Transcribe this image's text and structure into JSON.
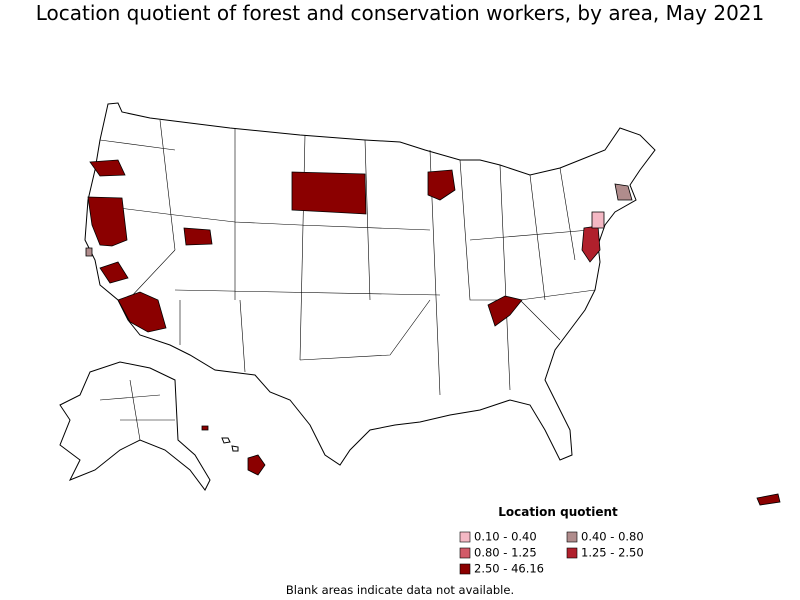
{
  "title": "Location quotient of forest and conservation workers, by area, May 2021",
  "legend": {
    "title": "Location quotient",
    "items": [
      {
        "label": "0.10 - 0.40",
        "color": "#f4b8c4"
      },
      {
        "label": "0.40 - 0.80",
        "color": "#b08c8c"
      },
      {
        "label": "0.80 - 1.25",
        "color": "#d25a68"
      },
      {
        "label": "1.25 - 2.50",
        "color": "#b0202c"
      },
      {
        "label": "2.50 - 46.16",
        "color": "#8b0000"
      }
    ]
  },
  "note": "Blank areas indicate data not available."
}
